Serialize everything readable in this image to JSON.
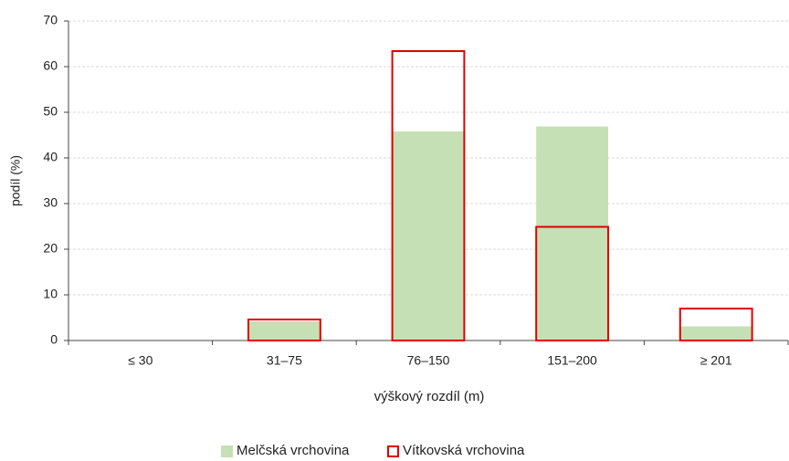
{
  "chart_data": {
    "type": "bar",
    "x_label": "výškový rozdíl (m)",
    "y_label": "podíl (%)",
    "categories": [
      "≤ 30",
      "31–75",
      "76–150",
      "151–200",
      "≥ 201"
    ],
    "series": [
      {
        "name": "Melčská vrchovina",
        "color": "#c5e0b4",
        "style": "fill",
        "values": [
          0,
          4.2,
          45.8,
          46.9,
          3.1
        ]
      },
      {
        "name": "Vítkovská vrchovina",
        "color": "#e00000",
        "style": "outline",
        "values": [
          0,
          4.6,
          63.4,
          24.9,
          7.0
        ]
      }
    ],
    "ylim": [
      0,
      70
    ],
    "yticks": [
      0,
      10,
      20,
      30,
      40,
      50,
      60,
      70
    ],
    "grid": true,
    "legend": "bottom"
  }
}
